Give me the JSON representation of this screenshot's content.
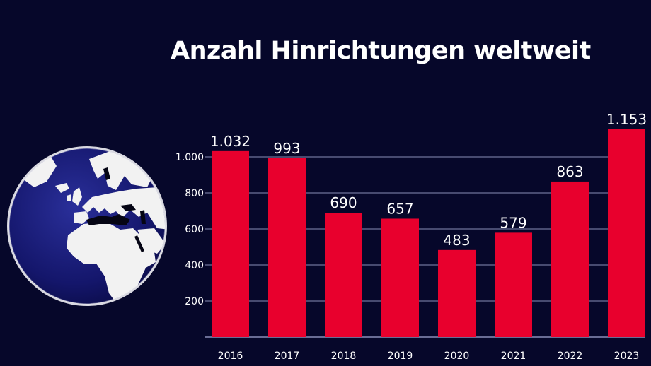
{
  "colors": {
    "background": "#06072a",
    "bar": "#e8002d",
    "grid": "#8a8eb8",
    "text": "#ffffff",
    "globe_ocean": "#14166b",
    "globe_land": "#f2f2f2"
  },
  "icon": "globe-europe-africa",
  "chart_data": {
    "type": "bar",
    "title": "Anzahl Hinrichtungen weltweit",
    "xlabel": "",
    "ylabel": "",
    "categories": [
      "2016",
      "2017",
      "2018",
      "2019",
      "2020",
      "2021",
      "2022",
      "2023"
    ],
    "values": [
      1032,
      993,
      690,
      657,
      483,
      579,
      863,
      1153
    ],
    "value_labels": [
      "1.032",
      "993",
      "690",
      "657",
      "483",
      "579",
      "863",
      "1.153"
    ],
    "yticks": [
      200,
      400,
      600,
      800,
      1000
    ],
    "ytick_labels": [
      "200",
      "400",
      "600",
      "800",
      "1.000"
    ],
    "ylim": [
      0,
      1200
    ],
    "grid": true,
    "legend": "none"
  }
}
